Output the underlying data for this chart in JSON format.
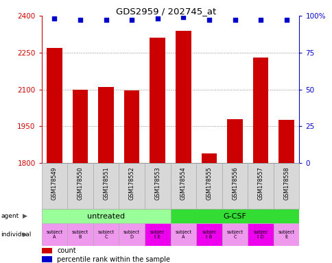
{
  "title": "GDS2959 / 202745_at",
  "samples": [
    "GSM178549",
    "GSM178550",
    "GSM178551",
    "GSM178552",
    "GSM178553",
    "GSM178554",
    "GSM178555",
    "GSM178556",
    "GSM178557",
    "GSM178558"
  ],
  "counts": [
    2270,
    2100,
    2110,
    2095,
    2310,
    2340,
    1840,
    1980,
    2230,
    1975
  ],
  "percentile_ranks": [
    98,
    97,
    97,
    97,
    98,
    99,
    97,
    97,
    97,
    97
  ],
  "ylim_left": [
    1800,
    2400
  ],
  "ylim_right": [
    0,
    100
  ],
  "yticks_left": [
    1800,
    1950,
    2100,
    2250,
    2400
  ],
  "yticks_right": [
    0,
    25,
    50,
    75,
    100
  ],
  "bar_color": "#cc0000",
  "dot_color": "#0000cc",
  "agent_groups": [
    {
      "label": "untreated",
      "start": 0,
      "end": 5,
      "color": "#99ff99"
    },
    {
      "label": "G-CSF",
      "start": 5,
      "end": 10,
      "color": "#33dd33"
    }
  ],
  "individuals": [
    {
      "label": "subject\nA",
      "idx": 0,
      "color": "#ee99ee"
    },
    {
      "label": "subject\nB",
      "idx": 1,
      "color": "#ee99ee"
    },
    {
      "label": "subject\nC",
      "idx": 2,
      "color": "#ee99ee"
    },
    {
      "label": "subject\nD",
      "idx": 3,
      "color": "#ee99ee"
    },
    {
      "label": "subjec\nt E",
      "idx": 4,
      "color": "#ee00ee"
    },
    {
      "label": "subject\nA",
      "idx": 5,
      "color": "#ee99ee"
    },
    {
      "label": "subjec\nt B",
      "idx": 6,
      "color": "#ee00ee"
    },
    {
      "label": "subject\nC",
      "idx": 7,
      "color": "#ee99ee"
    },
    {
      "label": "subjec\nt D",
      "idx": 8,
      "color": "#ee00ee"
    },
    {
      "label": "subject\nE",
      "idx": 9,
      "color": "#ee99ee"
    }
  ],
  "left_axis_color": "#cc0000",
  "right_axis_color": "#0000cc",
  "bg_color": "#ffffff",
  "grid_color": "#888888",
  "sample_bg": "#d8d8d8",
  "sample_edge": "#aaaaaa"
}
